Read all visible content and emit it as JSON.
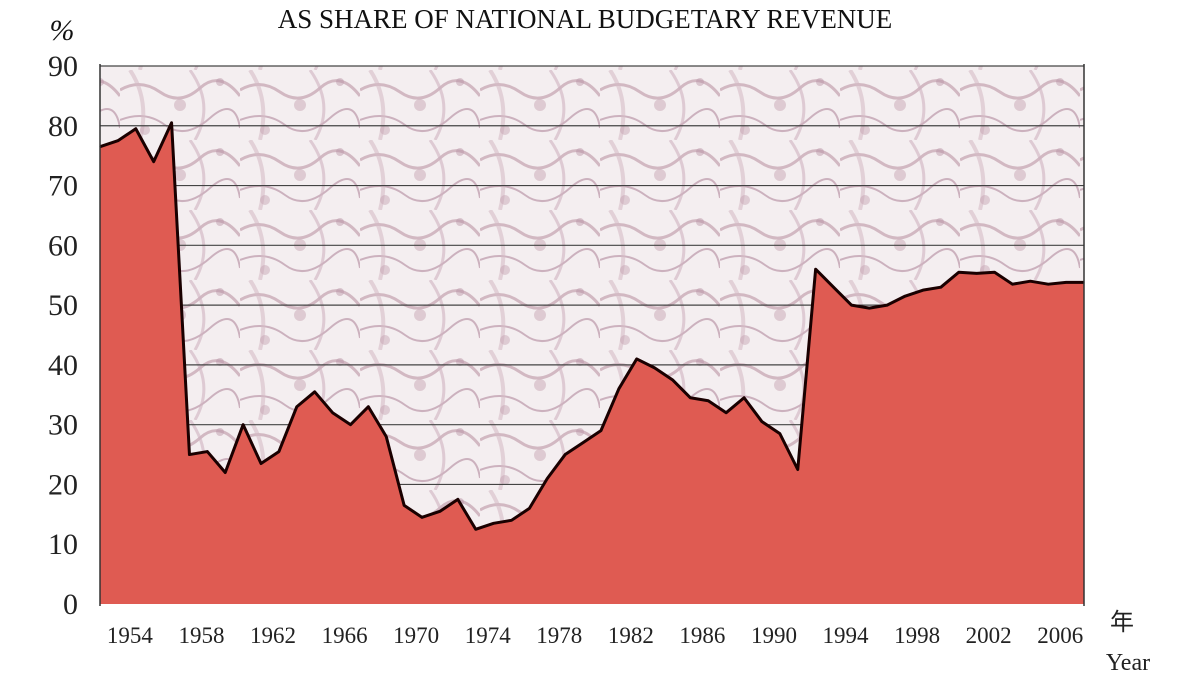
{
  "chart_data": {
    "type": "area",
    "title": "AS SHARE OF NATIONAL BUDGETARY REVENUE",
    "y_unit": "%",
    "xlabel_cn": "年",
    "xlabel": "Year",
    "xlim": [
      1953,
      2008
    ],
    "ylim": [
      0,
      90
    ],
    "yticks": [
      0,
      10,
      20,
      30,
      40,
      50,
      60,
      70,
      80,
      90
    ],
    "xticks": [
      1954,
      1958,
      1962,
      1966,
      1970,
      1974,
      1978,
      1982,
      1986,
      1990,
      1994,
      1998,
      2002,
      2006
    ],
    "grid": true,
    "x": [
      1953,
      1954,
      1955,
      1956,
      1957,
      1958,
      1959,
      1960,
      1961,
      1962,
      1963,
      1964,
      1965,
      1966,
      1967,
      1968,
      1969,
      1970,
      1971,
      1972,
      1973,
      1974,
      1975,
      1976,
      1977,
      1978,
      1979,
      1980,
      1981,
      1982,
      1983,
      1984,
      1985,
      1986,
      1987,
      1988,
      1989,
      1990,
      1991,
      1992,
      1993,
      1994,
      1995,
      1996,
      1997,
      1998,
      1999,
      2000,
      2001,
      2002,
      2003,
      2004,
      2005,
      2006,
      2007,
      2008
    ],
    "values": [
      76.5,
      77.5,
      79.5,
      74,
      80.5,
      25,
      25.5,
      22,
      30,
      23.5,
      25.5,
      33,
      35.5,
      32,
      30,
      33,
      28,
      16.5,
      14.5,
      15.5,
      17.5,
      12.5,
      13.5,
      14,
      16,
      21,
      25,
      27,
      29,
      36,
      41,
      39.5,
      37.5,
      34.5,
      34,
      32,
      34.5,
      30.5,
      28.5,
      22.5,
      56,
      53,
      50,
      49.5,
      50,
      51.5,
      52.5,
      53,
      55.5,
      55.3,
      55.5,
      53.5,
      54,
      53.5,
      53.8,
      53.8
    ]
  },
  "colors": {
    "fill": "#df5b52",
    "line": "#1a0000",
    "grid": "#444444",
    "background_texture": "#d8c4cc"
  }
}
